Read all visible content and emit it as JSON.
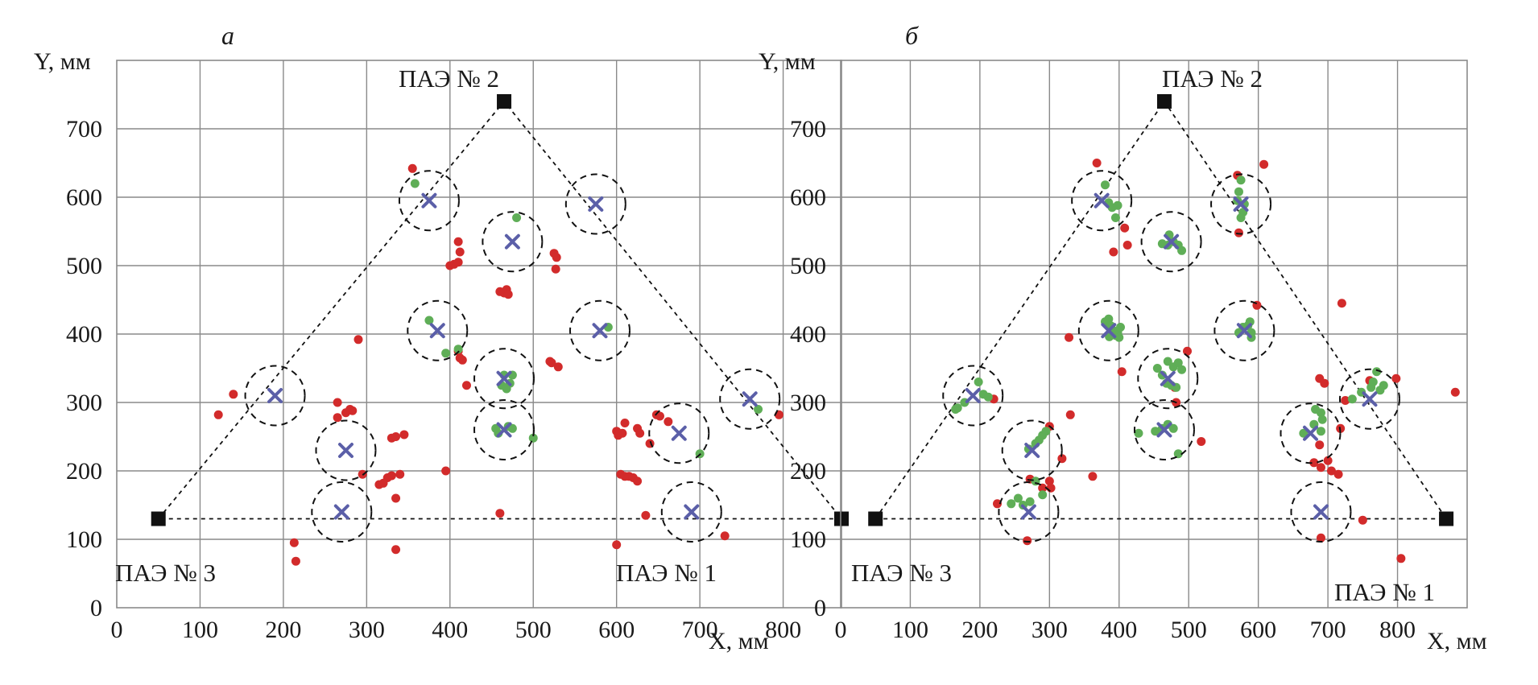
{
  "colors": {
    "grid": "#8a8a8a",
    "frame": "#8a8a8a",
    "red_points": "#d22b2b",
    "green_points": "#5fae57",
    "cross": "#5b5fa8",
    "sensor": "#111111"
  },
  "chart_data": [
    {
      "type": "scatter",
      "panel_label": "а",
      "xlabel": "X, мм",
      "ylabel": "Y, мм",
      "xlim": [
        0,
        870
      ],
      "ylim": [
        0,
        800
      ],
      "x_ticks": [
        0,
        100,
        200,
        300,
        400,
        500,
        600,
        700,
        800
      ],
      "y_ticks": [
        0,
        100,
        200,
        300,
        400,
        500,
        600,
        700
      ],
      "grid": true,
      "sensors": [
        {
          "label": "ПАЭ № 1",
          "x": 870,
          "y": 130
        },
        {
          "label": "ПАЭ № 2",
          "x": 465,
          "y": 740
        },
        {
          "label": "ПАЭ № 3",
          "x": 50,
          "y": 130
        }
      ],
      "sources": [
        [
          375,
          595
        ],
        [
          575,
          590
        ],
        [
          475,
          535
        ],
        [
          385,
          405
        ],
        [
          580,
          405
        ],
        [
          190,
          310
        ],
        [
          465,
          335
        ],
        [
          760,
          305
        ],
        [
          275,
          230
        ],
        [
          465,
          260
        ],
        [
          675,
          255
        ],
        [
          270,
          140
        ],
        [
          690,
          140
        ]
      ],
      "green_points": [
        [
          358,
          620
        ],
        [
          480,
          570
        ],
        [
          375,
          420
        ],
        [
          395,
          372
        ],
        [
          410,
          378
        ],
        [
          465,
          340
        ],
        [
          475,
          340
        ],
        [
          462,
          325
        ],
        [
          472,
          328
        ],
        [
          468,
          320
        ],
        [
          455,
          262
        ],
        [
          470,
          265
        ],
        [
          475,
          262
        ],
        [
          458,
          255
        ],
        [
          500,
          248
        ],
        [
          590,
          410
        ],
        [
          700,
          225
        ],
        [
          770,
          290
        ]
      ],
      "red_points": [
        [
          355,
          642
        ],
        [
          410,
          535
        ],
        [
          412,
          520
        ],
        [
          400,
          500
        ],
        [
          405,
          502
        ],
        [
          410,
          505
        ],
        [
          460,
          462
        ],
        [
          468,
          465
        ],
        [
          465,
          460
        ],
        [
          470,
          458
        ],
        [
          525,
          518
        ],
        [
          528,
          512
        ],
        [
          527,
          495
        ],
        [
          410,
          375
        ],
        [
          412,
          365
        ],
        [
          415,
          362
        ],
        [
          290,
          392
        ],
        [
          520,
          360
        ],
        [
          522,
          358
        ],
        [
          530,
          352
        ],
        [
          420,
          325
        ],
        [
          140,
          312
        ],
        [
          122,
          282
        ],
        [
          265,
          300
        ],
        [
          265,
          278
        ],
        [
          275,
          285
        ],
        [
          280,
          290
        ],
        [
          283,
          288
        ],
        [
          330,
          248
        ],
        [
          335,
          250
        ],
        [
          345,
          253
        ],
        [
          325,
          190
        ],
        [
          330,
          193
        ],
        [
          340,
          195
        ],
        [
          315,
          180
        ],
        [
          320,
          182
        ],
        [
          295,
          195
        ],
        [
          335,
          160
        ],
        [
          395,
          200
        ],
        [
          460,
          138
        ],
        [
          600,
          258
        ],
        [
          602,
          252
        ],
        [
          607,
          255
        ],
        [
          610,
          270
        ],
        [
          625,
          262
        ],
        [
          628,
          255
        ],
        [
          640,
          240
        ],
        [
          648,
          282
        ],
        [
          652,
          280
        ],
        [
          662,
          272
        ],
        [
          605,
          195
        ],
        [
          610,
          192
        ],
        [
          615,
          192
        ],
        [
          620,
          190
        ],
        [
          625,
          185
        ],
        [
          635,
          135
        ],
        [
          600,
          92
        ],
        [
          730,
          105
        ],
        [
          795,
          282
        ],
        [
          213,
          95
        ],
        [
          215,
          68
        ],
        [
          335,
          85
        ]
      ]
    },
    {
      "type": "scatter",
      "panel_label": "б",
      "xlabel": "X, мм",
      "ylabel": "Y, мм",
      "xlim": [
        0,
        900
      ],
      "ylim": [
        0,
        800
      ],
      "x_ticks": [
        0,
        100,
        200,
        300,
        400,
        500,
        600,
        700,
        800
      ],
      "y_ticks": [
        0,
        100,
        200,
        300,
        400,
        500,
        600,
        700
      ],
      "grid": true,
      "sensors": [
        {
          "label": "ПАЭ № 1",
          "x": 870,
          "y": 130
        },
        {
          "label": "ПАЭ № 2",
          "x": 465,
          "y": 740
        },
        {
          "label": "ПАЭ № 3",
          "x": 50,
          "y": 130
        }
      ],
      "sources": [
        [
          375,
          595
        ],
        [
          575,
          590
        ],
        [
          475,
          535
        ],
        [
          385,
          405
        ],
        [
          580,
          405
        ],
        [
          190,
          310
        ],
        [
          470,
          335
        ],
        [
          760,
          305
        ],
        [
          275,
          230
        ],
        [
          465,
          260
        ],
        [
          675,
          255
        ],
        [
          270,
          140
        ],
        [
          690,
          140
        ]
      ],
      "green_points": [
        [
          380,
          618
        ],
        [
          385,
          592
        ],
        [
          390,
          585
        ],
        [
          398,
          588
        ],
        [
          395,
          570
        ],
        [
          575,
          625
        ],
        [
          572,
          608
        ],
        [
          570,
          595
        ],
        [
          580,
          590
        ],
        [
          578,
          578
        ],
        [
          575,
          570
        ],
        [
          462,
          532
        ],
        [
          470,
          530
        ],
        [
          478,
          535
        ],
        [
          485,
          530
        ],
        [
          490,
          522
        ],
        [
          472,
          545
        ],
        [
          380,
          418
        ],
        [
          385,
          422
        ],
        [
          388,
          412
        ],
        [
          392,
          405
        ],
        [
          398,
          402
        ],
        [
          402,
          410
        ],
        [
          395,
          398
        ],
        [
          400,
          395
        ],
        [
          386,
          396
        ],
        [
          572,
          402
        ],
        [
          578,
          410
        ],
        [
          585,
          412
        ],
        [
          588,
          418
        ],
        [
          590,
          402
        ],
        [
          590,
          395
        ],
        [
          470,
          360
        ],
        [
          478,
          352
        ],
        [
          485,
          358
        ],
        [
          490,
          348
        ],
        [
          462,
          340
        ],
        [
          468,
          328
        ],
        [
          475,
          325
        ],
        [
          482,
          322
        ],
        [
          455,
          350
        ],
        [
          452,
          258
        ],
        [
          462,
          262
        ],
        [
          470,
          268
        ],
        [
          478,
          262
        ],
        [
          428,
          255
        ],
        [
          485,
          225
        ],
        [
          198,
          330
        ],
        [
          205,
          312
        ],
        [
          212,
          308
        ],
        [
          178,
          300
        ],
        [
          168,
          292
        ],
        [
          165,
          290
        ],
        [
          270,
          232
        ],
        [
          280,
          240
        ],
        [
          290,
          252
        ],
        [
          295,
          258
        ],
        [
          285,
          245
        ],
        [
          255,
          160
        ],
        [
          262,
          150
        ],
        [
          272,
          155
        ],
        [
          245,
          152
        ],
        [
          290,
          165
        ],
        [
          280,
          185
        ],
        [
          682,
          290
        ],
        [
          690,
          285
        ],
        [
          692,
          275
        ],
        [
          680,
          268
        ],
        [
          690,
          258
        ],
        [
          665,
          255
        ],
        [
          735,
          305
        ],
        [
          748,
          315
        ],
        [
          765,
          330
        ],
        [
          770,
          345
        ],
        [
          762,
          322
        ],
        [
          775,
          318
        ],
        [
          780,
          325
        ]
      ],
      "red_points": [
        [
          368,
          650
        ],
        [
          570,
          632
        ],
        [
          608,
          648
        ],
        [
          408,
          555
        ],
        [
          412,
          530
        ],
        [
          392,
          520
        ],
        [
          572,
          548
        ],
        [
          598,
          442
        ],
        [
          720,
          445
        ],
        [
          328,
          395
        ],
        [
          404,
          345
        ],
        [
          498,
          375
        ],
        [
          480,
          322
        ],
        [
          482,
          300
        ],
        [
          220,
          305
        ],
        [
          330,
          282
        ],
        [
          362,
          192
        ],
        [
          300,
          265
        ],
        [
          318,
          218
        ],
        [
          300,
          185
        ],
        [
          302,
          175
        ],
        [
          272,
          188
        ],
        [
          225,
          152
        ],
        [
          290,
          175
        ],
        [
          268,
          98
        ],
        [
          518,
          243
        ],
        [
          688,
          335
        ],
        [
          695,
          328
        ],
        [
          688,
          238
        ],
        [
          700,
          215
        ],
        [
          690,
          205
        ],
        [
          705,
          200
        ],
        [
          715,
          195
        ],
        [
          680,
          212
        ],
        [
          718,
          262
        ],
        [
          725,
          303
        ],
        [
          760,
          332
        ],
        [
          798,
          335
        ],
        [
          883,
          315
        ],
        [
          750,
          128
        ],
        [
          690,
          102
        ],
        [
          805,
          72
        ]
      ]
    }
  ]
}
